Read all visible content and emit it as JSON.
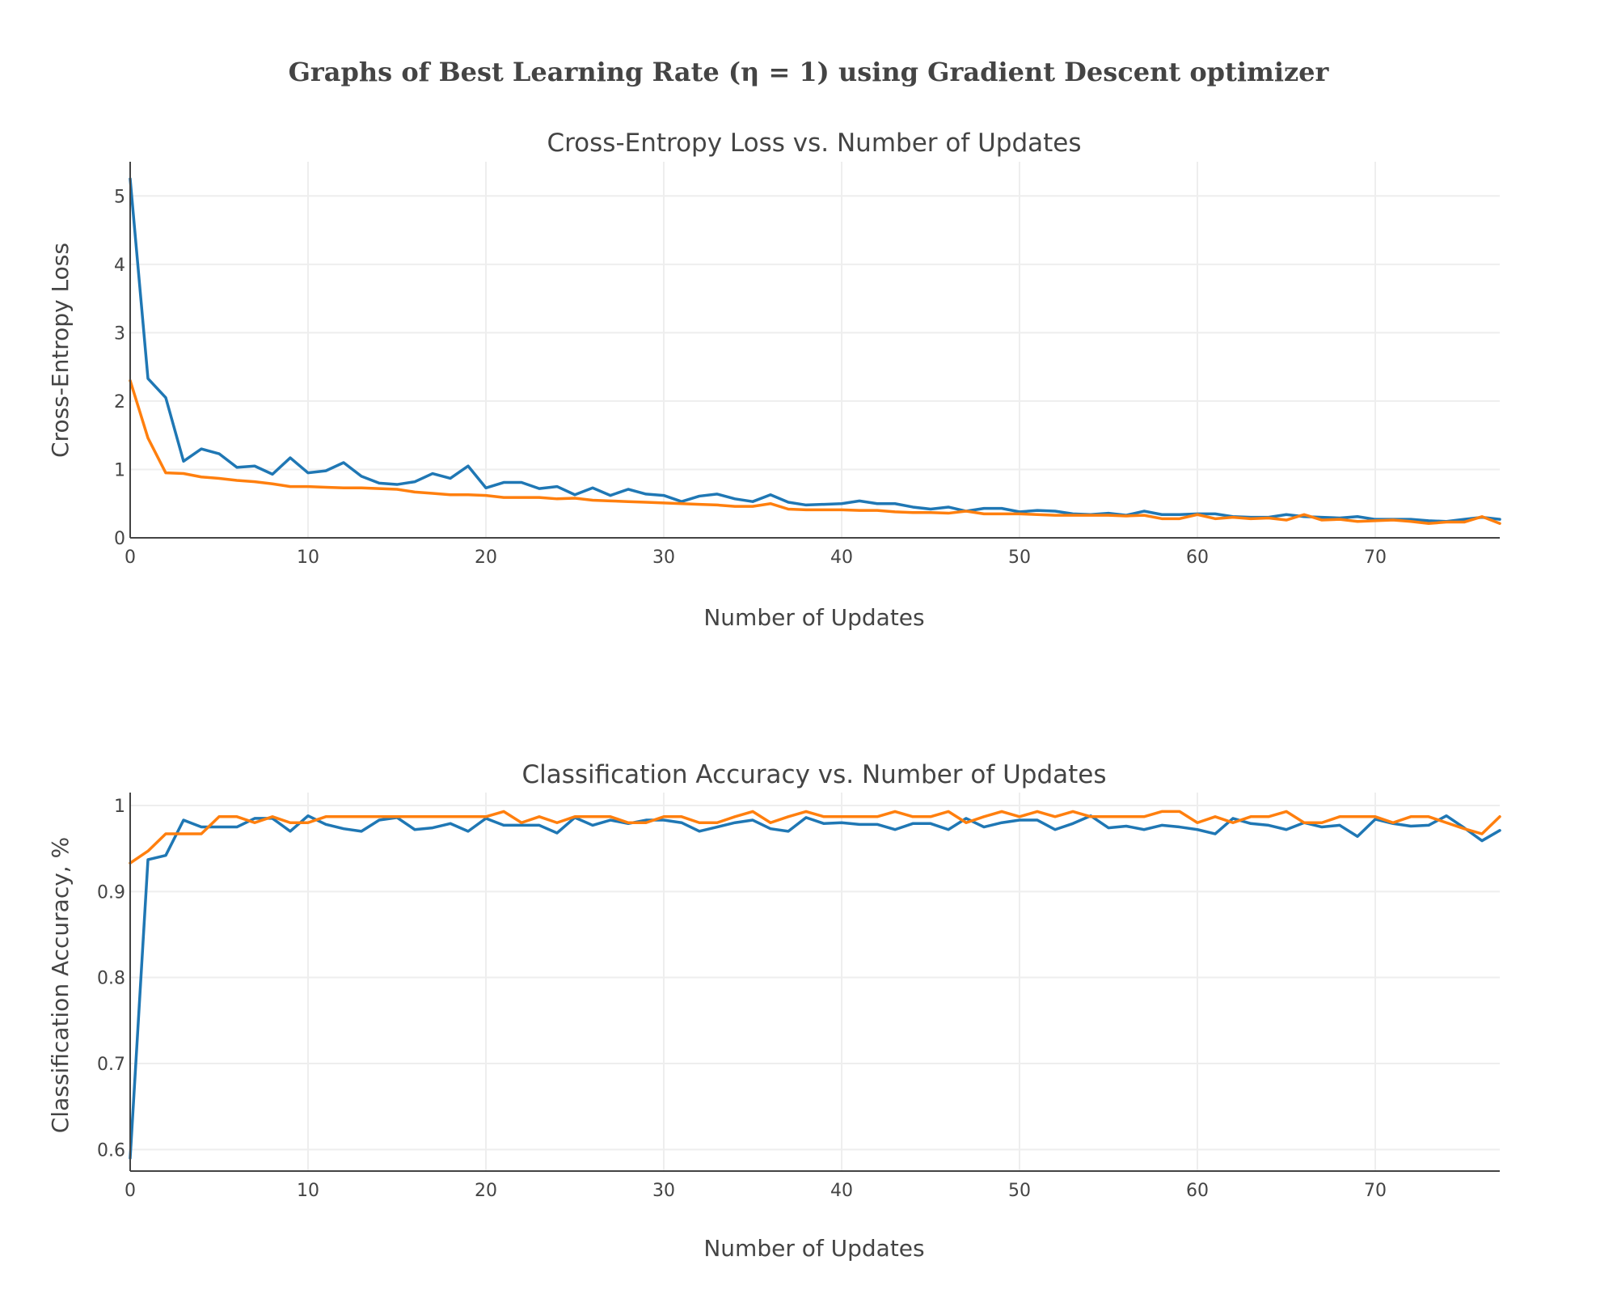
{
  "figure_title": "Graphs of Best Learning Rate (η = 1) using Gradient Descent optimizer",
  "colors": {
    "series_1": "#1f77b4",
    "series_2": "#ff7f0e"
  },
  "chart_data": [
    {
      "type": "line",
      "title": "Cross-Entropy Loss vs. Number of Updates",
      "xlabel": "Number of Updates",
      "ylabel": "Cross-Entropy Loss",
      "xlim": [
        0,
        77
      ],
      "ylim": [
        0,
        5.5
      ],
      "xticks": [
        0,
        10,
        20,
        30,
        40,
        50,
        60,
        70
      ],
      "yticks": [
        0,
        1,
        2,
        3,
        4,
        5
      ],
      "ytick_labels": [
        "0",
        "1",
        "2",
        "3",
        "4",
        "5"
      ],
      "grid": true,
      "series": [
        {
          "color": "#1f77b4",
          "x": [
            0,
            1,
            2,
            3,
            4,
            5,
            6,
            7,
            8,
            9,
            10,
            11,
            12,
            13,
            14,
            15,
            16,
            17,
            18,
            19,
            20,
            21,
            22,
            23,
            24,
            25,
            26,
            27,
            28,
            29,
            30,
            31,
            32,
            33,
            34,
            35,
            36,
            37,
            38,
            39,
            40,
            41,
            42,
            43,
            44,
            45,
            46,
            47,
            48,
            49,
            50,
            51,
            52,
            53,
            54,
            55,
            56,
            57,
            58,
            59,
            60,
            61,
            62,
            63,
            64,
            65,
            66,
            67,
            68,
            69,
            70,
            71,
            72,
            73,
            74,
            75,
            76,
            77
          ],
          "values": [
            5.25,
            2.33,
            2.05,
            1.12,
            1.3,
            1.23,
            1.03,
            1.05,
            0.93,
            1.17,
            0.95,
            0.98,
            1.1,
            0.9,
            0.8,
            0.78,
            0.82,
            0.94,
            0.87,
            1.05,
            0.73,
            0.81,
            0.81,
            0.72,
            0.75,
            0.63,
            0.73,
            0.62,
            0.71,
            0.64,
            0.62,
            0.53,
            0.61,
            0.64,
            0.57,
            0.53,
            0.63,
            0.52,
            0.48,
            0.49,
            0.5,
            0.54,
            0.5,
            0.5,
            0.45,
            0.42,
            0.45,
            0.39,
            0.43,
            0.43,
            0.38,
            0.4,
            0.39,
            0.35,
            0.34,
            0.36,
            0.33,
            0.39,
            0.34,
            0.34,
            0.35,
            0.35,
            0.31,
            0.3,
            0.3,
            0.34,
            0.31,
            0.3,
            0.29,
            0.31,
            0.27,
            0.27,
            0.27,
            0.25,
            0.24,
            0.27,
            0.3,
            0.27
          ]
        },
        {
          "color": "#ff7f0e",
          "x": [
            0,
            1,
            2,
            3,
            4,
            5,
            6,
            7,
            8,
            9,
            10,
            11,
            12,
            13,
            14,
            15,
            16,
            17,
            18,
            19,
            20,
            21,
            22,
            23,
            24,
            25,
            26,
            27,
            28,
            29,
            30,
            31,
            32,
            33,
            34,
            35,
            36,
            37,
            38,
            39,
            40,
            41,
            42,
            43,
            44,
            45,
            46,
            47,
            48,
            49,
            50,
            51,
            52,
            53,
            54,
            55,
            56,
            57,
            58,
            59,
            60,
            61,
            62,
            63,
            64,
            65,
            66,
            67,
            68,
            69,
            70,
            71,
            72,
            73,
            74,
            75,
            76,
            77
          ],
          "values": [
            2.3,
            1.46,
            0.95,
            0.94,
            0.89,
            0.87,
            0.84,
            0.82,
            0.79,
            0.75,
            0.75,
            0.74,
            0.73,
            0.73,
            0.72,
            0.71,
            0.67,
            0.65,
            0.63,
            0.63,
            0.62,
            0.59,
            0.59,
            0.59,
            0.57,
            0.58,
            0.55,
            0.54,
            0.53,
            0.52,
            0.51,
            0.5,
            0.49,
            0.48,
            0.46,
            0.46,
            0.5,
            0.42,
            0.41,
            0.41,
            0.41,
            0.4,
            0.4,
            0.38,
            0.37,
            0.37,
            0.36,
            0.39,
            0.35,
            0.35,
            0.35,
            0.34,
            0.33,
            0.33,
            0.33,
            0.33,
            0.32,
            0.33,
            0.28,
            0.28,
            0.34,
            0.28,
            0.3,
            0.28,
            0.29,
            0.26,
            0.34,
            0.26,
            0.27,
            0.24,
            0.25,
            0.26,
            0.24,
            0.21,
            0.23,
            0.23,
            0.31,
            0.21
          ]
        }
      ]
    },
    {
      "type": "line",
      "title": "Classification Accuracy vs. Number of Updates",
      "xlabel": "Number of Updates",
      "ylabel": "Classification Accuracy, %",
      "xlim": [
        0,
        77
      ],
      "ylim": [
        0.575,
        1.015
      ],
      "xticks": [
        0,
        10,
        20,
        30,
        40,
        50,
        60,
        70
      ],
      "yticks": [
        0.6,
        0.7,
        0.8,
        0.9,
        1
      ],
      "ytick_labels": [
        "0.6",
        "0.7",
        "0.8",
        "0.9",
        "1"
      ],
      "grid": true,
      "series": [
        {
          "color": "#1f77b4",
          "x": [
            0,
            1,
            2,
            3,
            4,
            5,
            6,
            7,
            8,
            9,
            10,
            11,
            12,
            13,
            14,
            15,
            16,
            17,
            18,
            19,
            20,
            21,
            22,
            23,
            24,
            25,
            26,
            27,
            28,
            29,
            30,
            31,
            32,
            33,
            34,
            35,
            36,
            37,
            38,
            39,
            40,
            41,
            42,
            43,
            44,
            45,
            46,
            47,
            48,
            49,
            50,
            51,
            52,
            53,
            54,
            55,
            56,
            57,
            58,
            59,
            60,
            61,
            62,
            63,
            64,
            65,
            66,
            67,
            68,
            69,
            70,
            71,
            72,
            73,
            74,
            75,
            76,
            77
          ],
          "values": [
            0.59,
            0.937,
            0.942,
            0.983,
            0.975,
            0.975,
            0.975,
            0.985,
            0.985,
            0.97,
            0.988,
            0.978,
            0.973,
            0.97,
            0.983,
            0.986,
            0.972,
            0.974,
            0.979,
            0.97,
            0.985,
            0.977,
            0.977,
            0.977,
            0.968,
            0.986,
            0.977,
            0.983,
            0.979,
            0.983,
            0.983,
            0.98,
            0.97,
            0.975,
            0.98,
            0.983,
            0.973,
            0.97,
            0.986,
            0.979,
            0.98,
            0.978,
            0.978,
            0.972,
            0.979,
            0.979,
            0.972,
            0.985,
            0.975,
            0.98,
            0.983,
            0.983,
            0.972,
            0.979,
            0.988,
            0.974,
            0.976,
            0.972,
            0.977,
            0.975,
            0.972,
            0.967,
            0.985,
            0.979,
            0.977,
            0.972,
            0.98,
            0.975,
            0.977,
            0.964,
            0.984,
            0.979,
            0.976,
            0.977,
            0.988,
            0.974,
            0.959,
            0.971
          ]
        },
        {
          "color": "#ff7f0e",
          "x": [
            0,
            1,
            2,
            3,
            4,
            5,
            6,
            7,
            8,
            9,
            10,
            11,
            12,
            13,
            14,
            15,
            16,
            17,
            18,
            19,
            20,
            21,
            22,
            23,
            24,
            25,
            26,
            27,
            28,
            29,
            30,
            31,
            32,
            33,
            34,
            35,
            36,
            37,
            38,
            39,
            40,
            41,
            42,
            43,
            44,
            45,
            46,
            47,
            48,
            49,
            50,
            51,
            52,
            53,
            54,
            55,
            56,
            57,
            58,
            59,
            60,
            61,
            62,
            63,
            64,
            65,
            66,
            67,
            68,
            69,
            70,
            71,
            72,
            73,
            74,
            75,
            76,
            77
          ],
          "values": [
            0.933,
            0.947,
            0.967,
            0.967,
            0.967,
            0.987,
            0.987,
            0.98,
            0.987,
            0.98,
            0.98,
            0.987,
            0.987,
            0.987,
            0.987,
            0.987,
            0.987,
            0.987,
            0.987,
            0.987,
            0.987,
            0.993,
            0.98,
            0.987,
            0.98,
            0.987,
            0.987,
            0.987,
            0.98,
            0.98,
            0.987,
            0.987,
            0.98,
            0.98,
            0.987,
            0.993,
            0.98,
            0.987,
            0.993,
            0.987,
            0.987,
            0.987,
            0.987,
            0.993,
            0.987,
            0.987,
            0.993,
            0.98,
            0.987,
            0.993,
            0.987,
            0.993,
            0.987,
            0.993,
            0.987,
            0.987,
            0.987,
            0.987,
            0.993,
            0.993,
            0.98,
            0.987,
            0.98,
            0.987,
            0.987,
            0.993,
            0.98,
            0.98,
            0.987,
            0.987,
            0.987,
            0.98,
            0.987,
            0.987,
            0.98,
            0.973,
            0.967,
            0.987
          ]
        }
      ]
    }
  ]
}
